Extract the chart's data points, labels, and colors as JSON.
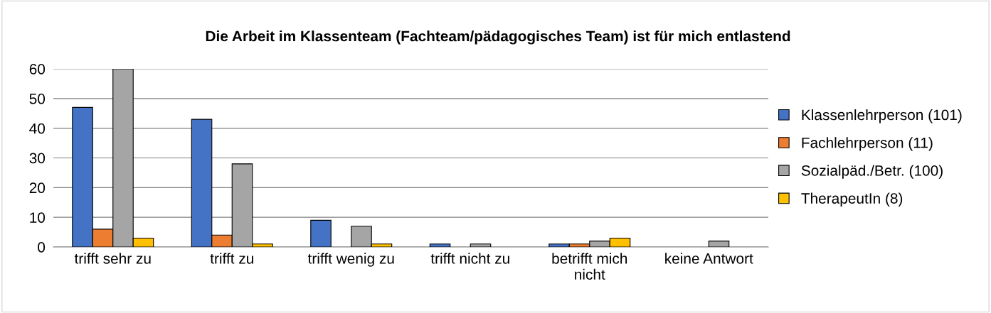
{
  "chart_data": {
    "type": "bar",
    "title": "Die Arbeit im Klassenteam (Fachteam/pädagogisches Team) ist für mich entlastend",
    "categories": [
      "trifft sehr zu",
      "trifft zu",
      "trifft wenig zu",
      "trifft nicht zu",
      "betrifft mich nicht",
      "keine Antwort"
    ],
    "series": [
      {
        "name": "Klassenlehrperson (101)",
        "color": "#4472c4",
        "values": [
          47,
          43,
          9,
          1,
          1,
          null
        ]
      },
      {
        "name": "Fachlehrperson (11)",
        "color": "#ed7d31",
        "values": [
          6,
          4,
          null,
          null,
          1,
          null
        ]
      },
      {
        "name": "Sozialpäd./Betr. (100)",
        "color": "#a5a5a5",
        "values": [
          60,
          28,
          7,
          1,
          2,
          2
        ]
      },
      {
        "name": "TherapeutIn (8)",
        "color": "#ffc000",
        "values": [
          3,
          1,
          1,
          null,
          3,
          null
        ]
      }
    ],
    "ylim": [
      0,
      60
    ],
    "yticks": [
      0,
      10,
      20,
      30,
      40,
      50,
      60
    ],
    "grid": "y",
    "legend": "right"
  }
}
